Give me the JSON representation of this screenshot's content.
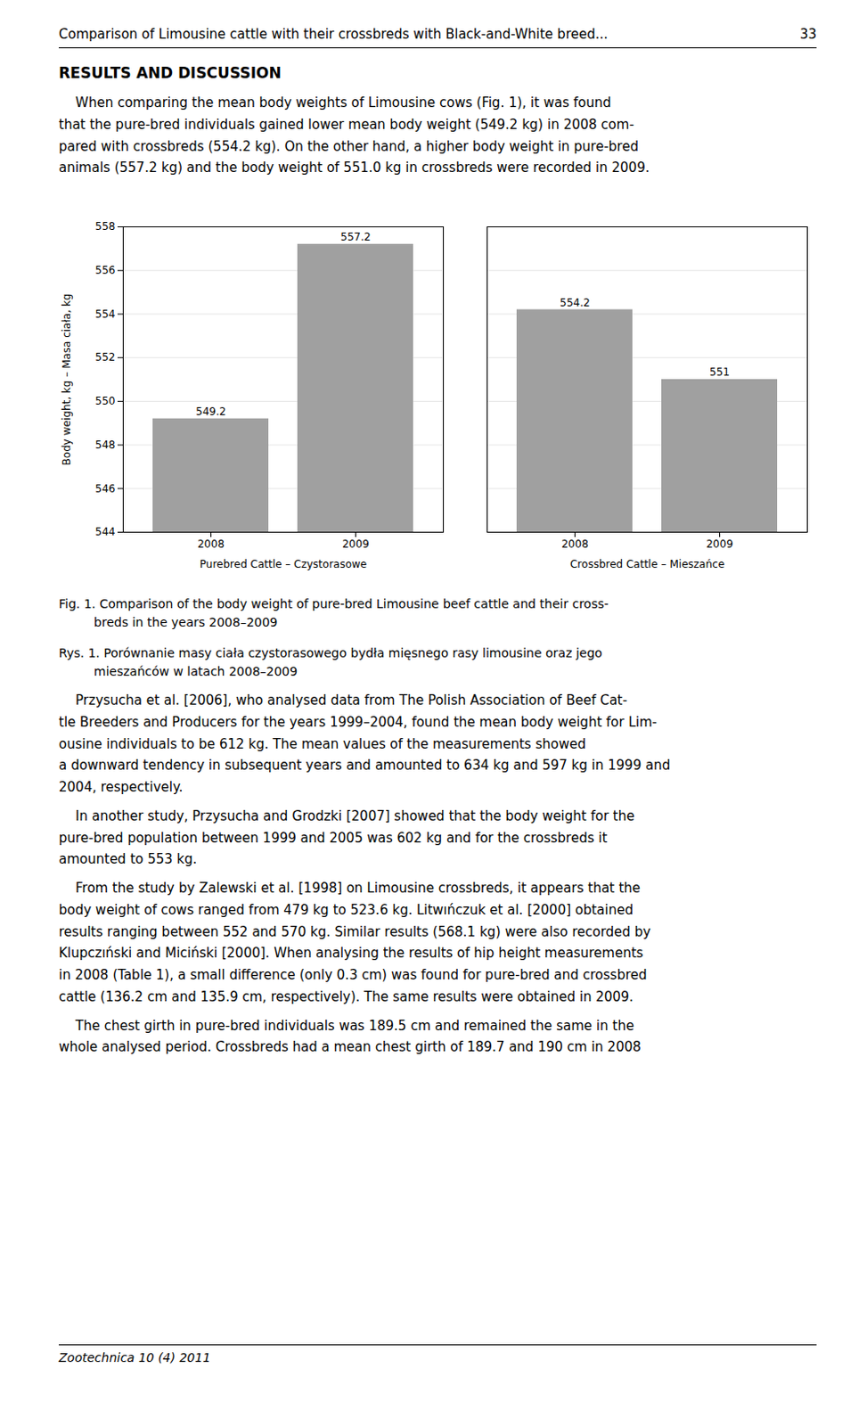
{
  "page": {
    "header": [
      "Comparison of Limousine cattle with their crossbreds with Black-and-White breed...",
      "33"
    ],
    "section_title": "RESULTS AND DISCUSSION",
    "paragraphs_before": [
      "    When comparing the mean body weights of Limousine cows (Fig. 1), it was found\nthat the pure-bred individuals gained lower mean body weight (549.2 kg) in 2008 com-\npared with crossbreds (554.2 kg). On the other hand, a higher body weight in pure-bred\nanimals (557.2 kg) and the body weight of 551.0 kg in crossbreds were recorded in 2009."
    ],
    "paragraphs_after": [
      "    Przysucha et al. [2006], who analysed data from The Polish Association of Beef Cat-\ntle Breeders and Producers for the years 1999–2004, found the mean body weight for Lim-\nousine individuals to be 612 kg. The mean values of the measurements showed\na downward tendency in subsequent years and amounted to 634 kg and 597 kg in 1999 and\n2004, respectively.",
      "    In another study, Przysucha and Grodzki [2007] showed that the body weight for the\npure-bred population between 1999 and 2005 was 602 kg and for the crossbreds it\namounted to 553 kg.",
      "    From the study by Zalewski et al. [1998] on Limousine crossbreds, it appears that the\nbody weight of cows ranged from 479 kg to 523.6 kg. Litwıńczuk et al. [2000] obtained\nresults ranging between 552 and 570 kg. Similar results (568.1 kg) were also recorded by\nKlupczıński and Miciński [2000]. When analysing the results of hip height measurements\nin 2008 (Table 1), a small difference (only 0.3 cm) was found for pure-bred and crossbred\ncattle (136.2 cm and 135.9 cm, respectively). The same results were obtained in 2009.",
      "    The chest girth in pure-bred individuals was 189.5 cm and remained the same in the\nwhole analysed period. Crossbreds had a mean chest girth of 189.7 and 190 cm in 2008"
    ],
    "footer": "Zootechnica 10 (4) 2011"
  },
  "chart_data": {
    "type": "bar",
    "title": "Fig. 1. Comparison of the body weight of pure-bred Limousine beef cattle and their cross-\n         breds in the years 2008–2009",
    "subtitle": "Rys. 1. Porównanie masy ciała czystorasowego bydła mięsnego rasy limousine oraz jego\n         mieszańców w latach 2008–2009",
    "categories": [
      "2008",
      "2009",
      "2008",
      "2009"
    ],
    "groups": [
      "Purebred Cattle – Czystorasowe",
      "Purebred Cattle – Czystorasowe",
      "Crossbred Cattle – Mieszańce",
      "Crossbred Cattle – Mieszańce"
    ],
    "values": [
      549.2,
      557.2,
      554.2,
      551.0
    ],
    "color": "#a0a0a0",
    "ylabel": "Body weight, kg – Masa ciała, kg",
    "ylim": [
      544,
      558
    ],
    "yticks": [
      544,
      546,
      548,
      550,
      552,
      554,
      556,
      558
    ],
    "grid": true,
    "data_labels": true
  }
}
